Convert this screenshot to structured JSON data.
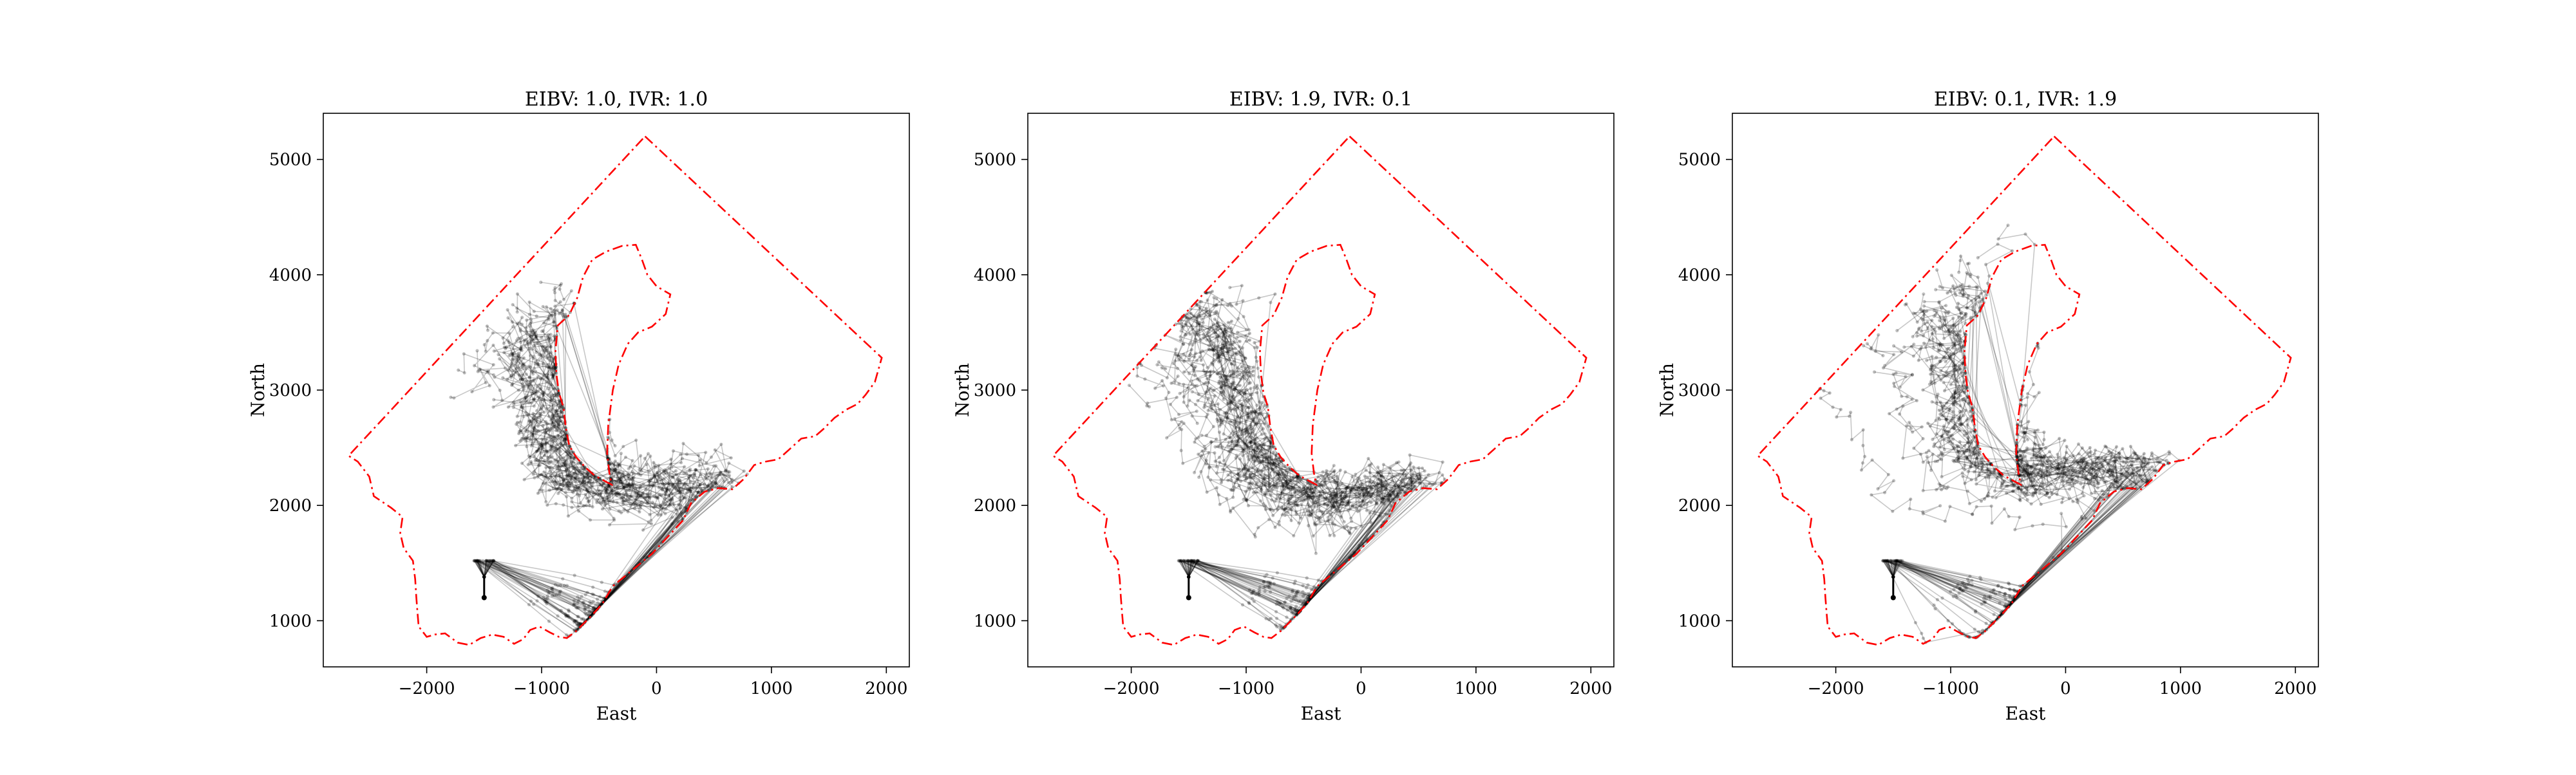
{
  "chart_data": [
    {
      "type": "line",
      "title": "EIBV: 1.0, IVR: 1.0",
      "xlabel": "East",
      "ylabel": "North",
      "xlim": [
        -2900,
        2200
      ],
      "ylim": [
        600,
        5400
      ],
      "xticks": [
        -2000,
        -1000,
        0,
        1000,
        2000
      ],
      "xtick_labels": [
        "−2000",
        "−1000",
        "0",
        "1000",
        "2000"
      ],
      "yticks": [
        1000,
        2000,
        3000,
        4000,
        5000
      ],
      "ytick_labels": [
        "1000",
        "2000",
        "3000",
        "4000",
        "5000"
      ],
      "grid": false,
      "start": [
        -1500,
        1200
      ],
      "sweep": {
        "center": [
          -220,
          2160
        ],
        "angle": 130,
        "len1": 2100,
        "len2": 1850,
        "amp": 520,
        "spread": 420,
        "seed": 11
      },
      "colors": {
        "boundary": "#ff0000",
        "paths": "#000000"
      }
    },
    {
      "type": "line",
      "title": "EIBV: 1.9, IVR: 0.1",
      "xlabel": "East",
      "ylabel": "North",
      "xlim": [
        -2900,
        2200
      ],
      "ylim": [
        600,
        5400
      ],
      "xticks": [
        -2000,
        -1000,
        0,
        1000,
        2000
      ],
      "xtick_labels": [
        "−2000",
        "−1000",
        "0",
        "1000",
        "2000"
      ],
      "yticks": [
        1000,
        2000,
        3000,
        4000,
        5000
      ],
      "ytick_labels": [
        "1000",
        "2000",
        "3000",
        "4000",
        "5000"
      ],
      "grid": false,
      "start": [
        -1500,
        1200
      ],
      "sweep": {
        "center": [
          -260,
          2020
        ],
        "angle": 138,
        "len1": 2000,
        "len2": 2200,
        "amp": 500,
        "spread": 360,
        "seed": 23
      },
      "colors": {
        "boundary": "#ff0000",
        "paths": "#000000"
      }
    },
    {
      "type": "line",
      "title": "EIBV: 0.1, IVR: 1.9",
      "xlabel": "East",
      "ylabel": "North",
      "xlim": [
        -2900,
        2200
      ],
      "ylim": [
        600,
        5400
      ],
      "xticks": [
        -2000,
        -1000,
        0,
        1000,
        2000
      ],
      "xtick_labels": [
        "−2000",
        "−1000",
        "0",
        "1000",
        "2000"
      ],
      "yticks": [
        1000,
        2000,
        3000,
        4000,
        5000
      ],
      "ytick_labels": [
        "1000",
        "2000",
        "3000",
        "4000",
        "5000"
      ],
      "grid": false,
      "start": [
        -1500,
        1200
      ],
      "sweep": {
        "center": [
          -170,
          2240
        ],
        "angle": 128,
        "len1": 2000,
        "len2": 1950,
        "amp": 560,
        "spread": 520,
        "seed": 37
      },
      "colors": {
        "boundary": "#ff0000",
        "paths": "#000000"
      }
    }
  ],
  "boundary": {
    "outer": [
      [
        -100,
        5200
      ],
      [
        1960,
        3280
      ],
      [
        1900,
        3070
      ],
      [
        1820,
        2960
      ],
      [
        1750,
        2880
      ],
      [
        1650,
        2830
      ],
      [
        1550,
        2760
      ],
      [
        1450,
        2660
      ],
      [
        1380,
        2600
      ],
      [
        1260,
        2580
      ],
      [
        1150,
        2480
      ],
      [
        1060,
        2400
      ],
      [
        950,
        2380
      ],
      [
        850,
        2350
      ],
      [
        760,
        2230
      ],
      [
        660,
        2140
      ],
      [
        540,
        2150
      ],
      [
        420,
        2120
      ],
      [
        300,
        2020
      ],
      [
        230,
        1870
      ],
      [
        100,
        1730
      ],
      [
        -40,
        1580
      ],
      [
        -210,
        1440
      ],
      [
        -380,
        1300
      ],
      [
        -470,
        1150
      ],
      [
        -560,
        1050
      ],
      [
        -700,
        910
      ],
      [
        -780,
        850
      ],
      [
        -850,
        860
      ],
      [
        -930,
        900
      ],
      [
        -1020,
        950
      ],
      [
        -1100,
        920
      ],
      [
        -1160,
        840
      ],
      [
        -1240,
        800
      ],
      [
        -1330,
        860
      ],
      [
        -1430,
        880
      ],
      [
        -1530,
        850
      ],
      [
        -1630,
        790
      ],
      [
        -1730,
        810
      ],
      [
        -1840,
        890
      ],
      [
        -1930,
        880
      ],
      [
        -2000,
        860
      ],
      [
        -2070,
        950
      ],
      [
        -2080,
        1070
      ],
      [
        -2090,
        1200
      ],
      [
        -2100,
        1360
      ],
      [
        -2120,
        1520
      ],
      [
        -2200,
        1630
      ],
      [
        -2230,
        1760
      ],
      [
        -2210,
        1900
      ],
      [
        -2310,
        1980
      ],
      [
        -2460,
        2080
      ],
      [
        -2500,
        2250
      ],
      [
        -2600,
        2380
      ],
      [
        -2680,
        2430
      ],
      [
        -100,
        5200
      ]
    ],
    "inner": [
      [
        -390,
        2180
      ],
      [
        -430,
        2200
      ],
      [
        -540,
        2260
      ],
      [
        -620,
        2330
      ],
      [
        -700,
        2420
      ],
      [
        -760,
        2520
      ],
      [
        -790,
        2680
      ],
      [
        -810,
        2850
      ],
      [
        -850,
        2980
      ],
      [
        -870,
        3130
      ],
      [
        -880,
        3330
      ],
      [
        -860,
        3560
      ],
      [
        -760,
        3650
      ],
      [
        -690,
        3800
      ],
      [
        -640,
        3980
      ],
      [
        -560,
        4130
      ],
      [
        -440,
        4200
      ],
      [
        -300,
        4250
      ],
      [
        -180,
        4260
      ],
      [
        -130,
        4140
      ],
      [
        -80,
        4000
      ],
      [
        0,
        3900
      ],
      [
        120,
        3830
      ],
      [
        80,
        3660
      ],
      [
        -40,
        3550
      ],
      [
        -160,
        3500
      ],
      [
        -250,
        3400
      ],
      [
        -330,
        3220
      ],
      [
        -380,
        3000
      ],
      [
        -420,
        2700
      ],
      [
        -430,
        2450
      ],
      [
        -410,
        2280
      ],
      [
        -390,
        2180
      ]
    ]
  }
}
